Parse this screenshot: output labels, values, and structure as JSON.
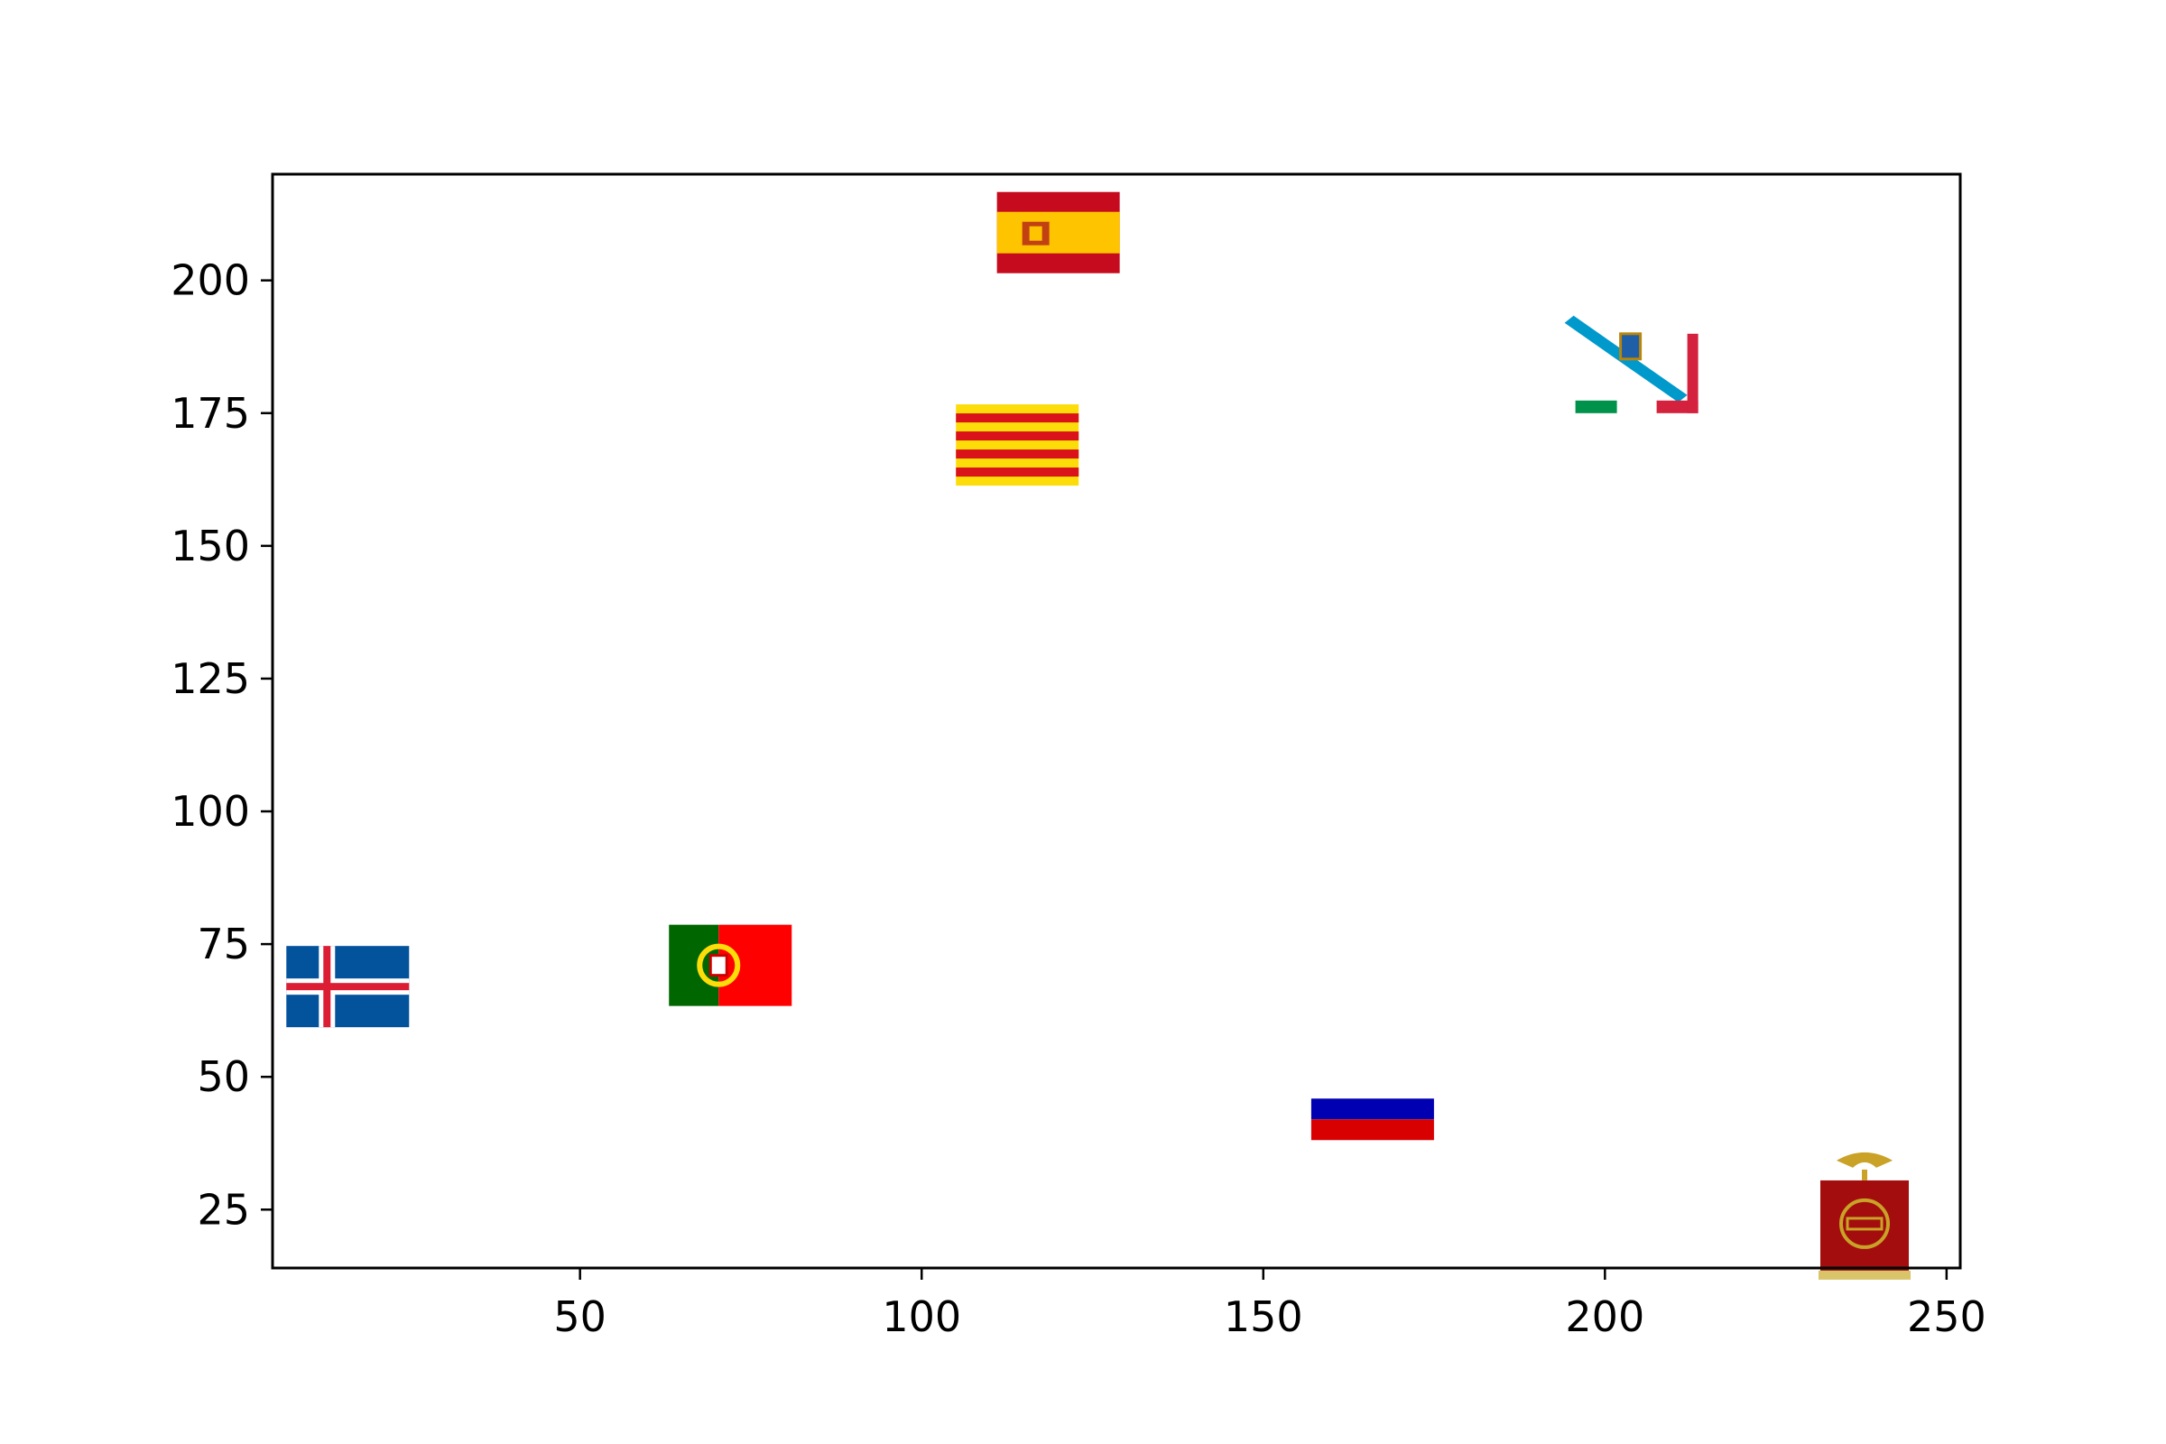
{
  "chart_data": {
    "type": "scatter",
    "title": "",
    "xlabel": "",
    "ylabel": "",
    "xlim": [
      5,
      252
    ],
    "ylim": [
      14,
      220
    ],
    "grid": false,
    "legend": "none",
    "x_ticks": [
      50,
      100,
      150,
      200,
      250
    ],
    "y_ticks": [
      25,
      50,
      75,
      100,
      125,
      150,
      175,
      200
    ],
    "x_tick_labels": [
      "50",
      "100",
      "150",
      "200",
      "250"
    ],
    "y_tick_labels": [
      "25",
      "50",
      "75",
      "100",
      "125",
      "150",
      "175",
      "200"
    ],
    "points": [
      {
        "x": 16,
        "y": 67,
        "marker": "iceland-flag-icon"
      },
      {
        "x": 72,
        "y": 71,
        "marker": "portugal-flag-icon"
      },
      {
        "x": 120,
        "y": 209,
        "marker": "spain-flag-icon"
      },
      {
        "x": 114,
        "y": 169,
        "marker": "catalonia-flag-icon"
      },
      {
        "x": 166,
        "y": 42,
        "marker": "blue-red-flag-icon"
      },
      {
        "x": 204,
        "y": 184,
        "marker": "galicia-flag-icon"
      },
      {
        "x": 238,
        "y": 22,
        "marker": "red-banner-flag-icon"
      }
    ],
    "colors": {
      "axes": "#000000",
      "iceland_blue": "#02529c",
      "iceland_red": "#dc1e35",
      "portugal_green": "#006600",
      "portugal_red": "#ff0000",
      "spain_red": "#c60b1e",
      "spain_yellow": "#ffc400",
      "catalonia_yellow": "#fcdd09",
      "catalonia_red": "#da121a",
      "blue": "#0000b3",
      "red": "#d80000",
      "galicia_blue": "#0099cc",
      "banner_red": "#a30d0d",
      "gold": "#c9a227"
    }
  }
}
